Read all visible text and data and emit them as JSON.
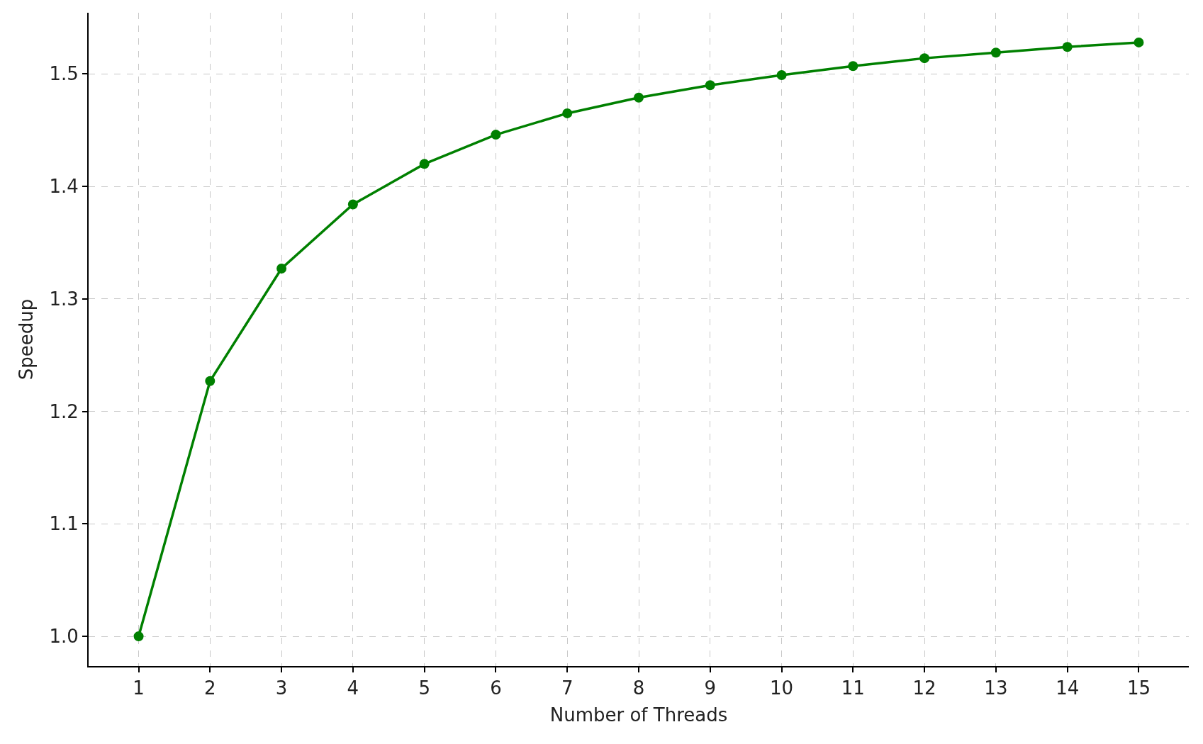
{
  "chart_data": {
    "type": "line",
    "xlabel": "Number of Threads",
    "ylabel": "Speedup",
    "x": [
      1,
      2,
      3,
      4,
      5,
      6,
      7,
      8,
      9,
      10,
      11,
      12,
      13,
      14,
      15
    ],
    "series": [
      {
        "color": "#008000",
        "values": [
          1.0,
          1.227,
          1.327,
          1.384,
          1.42,
          1.446,
          1.465,
          1.479,
          1.49,
          1.499,
          1.507,
          1.514,
          1.519,
          1.524,
          1.528
        ]
      }
    ],
    "xlim": [
      0.3,
      15.7
    ],
    "xticks": [
      1,
      2,
      3,
      4,
      5,
      6,
      7,
      8,
      9,
      10,
      11,
      12,
      13,
      14,
      15
    ],
    "ylim": [
      0.9736,
      1.5544
    ],
    "yticks": [
      {
        "value": 1.0,
        "label": "1.0"
      },
      1.1,
      1.2,
      1.3,
      1.4,
      1.5
    ],
    "grid": true,
    "marker": "circle",
    "line_style": "solid"
  }
}
